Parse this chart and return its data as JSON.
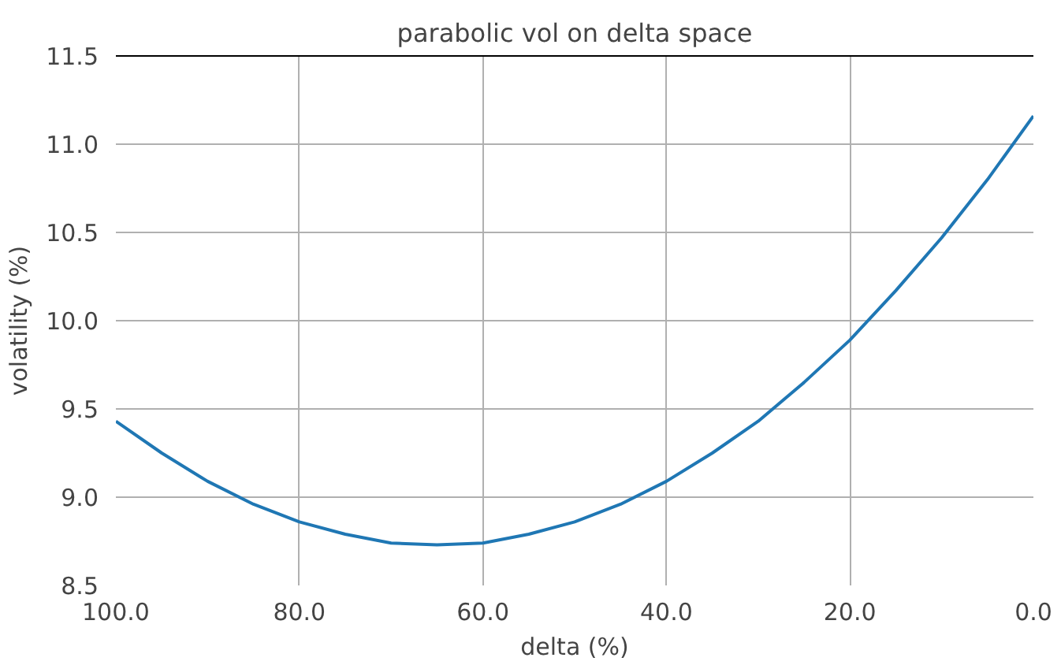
{
  "chart_data": {
    "type": "line",
    "title": "parabolic vol on delta space",
    "xlabel": "delta (%)",
    "ylabel": "volatility (%)",
    "x": [
      100,
      95,
      90,
      85,
      80,
      75,
      70,
      65,
      60,
      55,
      50,
      45,
      40,
      35,
      30,
      25,
      20,
      15,
      10,
      5,
      0
    ],
    "series": [
      {
        "color": "#1f77b4",
        "values": [
          9.43,
          9.25,
          9.09,
          8.96,
          8.86,
          8.79,
          8.74,
          8.73,
          8.74,
          8.79,
          8.86,
          8.96,
          9.09,
          9.25,
          9.43,
          9.65,
          9.89,
          10.17,
          10.47,
          10.8,
          11.16
        ]
      }
    ],
    "xlim": [
      100,
      0
    ],
    "ylim": [
      8.5,
      11.5
    ],
    "xticks": [
      {
        "value": 100,
        "label": "100.0"
      },
      {
        "value": 80,
        "label": "80.0"
      },
      {
        "value": 60,
        "label": "60.0"
      },
      {
        "value": 40,
        "label": "40.0"
      },
      {
        "value": 20,
        "label": "20.0"
      },
      {
        "value": 0,
        "label": "0.0"
      }
    ],
    "yticks": [
      8.5,
      {
        "value": 9,
        "label": "9.0"
      },
      9.5,
      {
        "value": 10,
        "label": "10.0"
      },
      10.5,
      {
        "value": 11,
        "label": "11.0"
      },
      11.5
    ],
    "grid": true,
    "marker": "none",
    "line_style": "solid"
  }
}
